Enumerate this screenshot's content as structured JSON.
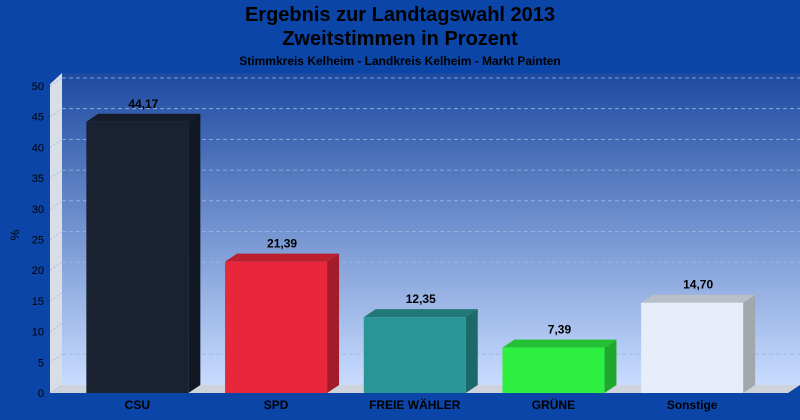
{
  "chart_data": {
    "type": "bar",
    "title": "Ergebnis zur Landtagswahl 2013",
    "subtitle_line": "Zweitstimmen in Prozent",
    "subtitle": "Stimmkreis Kelheim - Landkreis Kelheim - Markt Painten",
    "ylabel": "%",
    "xlabel": "",
    "ylim": [
      0,
      50
    ],
    "yticks": [
      0,
      5,
      10,
      15,
      20,
      25,
      30,
      35,
      40,
      45,
      50
    ],
    "grid": true,
    "categories": [
      "CSU",
      "SPD",
      "FREIE WÄHLER",
      "GRÜNE",
      "Sonstige"
    ],
    "values": [
      44.17,
      21.39,
      12.35,
      7.39,
      14.7
    ],
    "value_labels": [
      "44,17",
      "21,39",
      "12,35",
      "7,39",
      "14,70"
    ],
    "colors": [
      "#1a2232",
      "#e8283a",
      "#2a9596",
      "#2df040",
      "#e8eef9"
    ]
  }
}
